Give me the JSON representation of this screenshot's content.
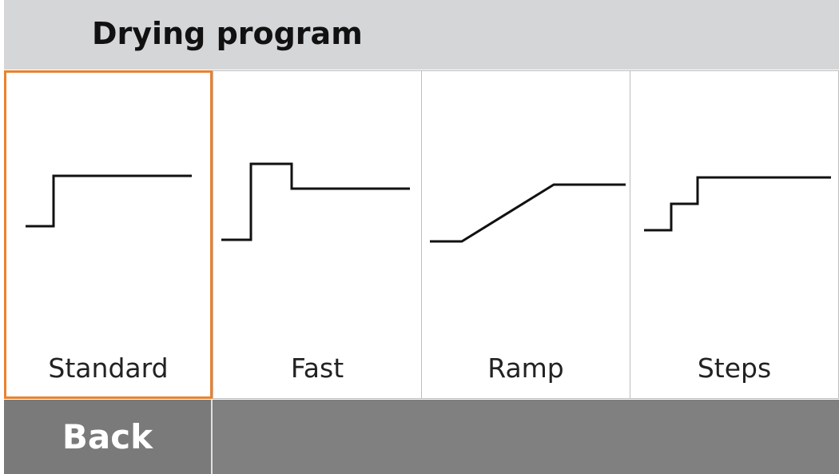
{
  "header": {
    "title": "Drying program"
  },
  "options": [
    {
      "label": "Standard"
    },
    {
      "label": "Fast"
    },
    {
      "label": "Ramp"
    },
    {
      "label": "Steps"
    }
  ],
  "buttons": {
    "back": "Back"
  }
}
